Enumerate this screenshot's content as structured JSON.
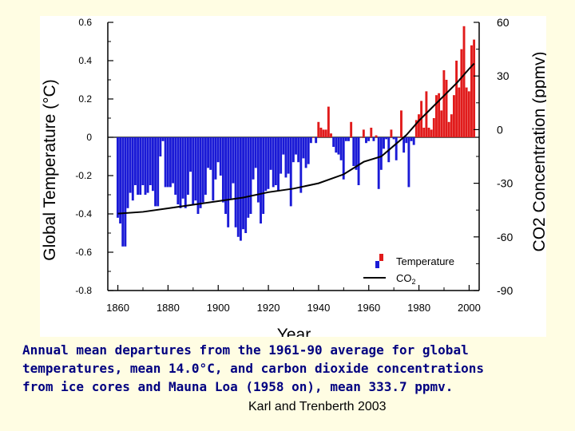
{
  "caption": {
    "lines": [
      "Annual mean departures from the 1961-90 average for global",
      "temperatures, mean 14.0°C, and carbon dioxide concentrations",
      "from ice cores and Mauna Loa (1958 on), mean 333.7 ppmv."
    ],
    "credit": "Karl and Trenberth 2003"
  },
  "chart_data": {
    "type": "bar",
    "title": "",
    "xlabel": "Year",
    "ylabel": "Global Temperature (°C)",
    "y2label": "CO2 Concentration (ppmv)",
    "xlim": [
      1856,
      2004
    ],
    "ylim": [
      -0.8,
      0.6
    ],
    "y2lim": [
      -90,
      60
    ],
    "xticks": [
      1860,
      1880,
      1900,
      1920,
      1940,
      1960,
      1980,
      2000
    ],
    "yticks": [
      -0.8,
      -0.6,
      -0.4,
      -0.2,
      0,
      0.2,
      0.4,
      0.6
    ],
    "y2ticks": [
      -90,
      -60,
      -30,
      0,
      30,
      60
    ],
    "legend": {
      "position": "bottom-right",
      "entries": [
        "Temperature",
        "CO2"
      ]
    },
    "colors": {
      "positive": "#e11b1b",
      "negative": "#1a1ad6",
      "line": "#000000"
    },
    "series": [
      {
        "name": "Temperature",
        "years": [
          1860,
          1861,
          1862,
          1863,
          1864,
          1865,
          1866,
          1867,
          1868,
          1869,
          1870,
          1871,
          1872,
          1873,
          1874,
          1875,
          1876,
          1877,
          1878,
          1879,
          1880,
          1881,
          1882,
          1883,
          1884,
          1885,
          1886,
          1887,
          1888,
          1889,
          1890,
          1891,
          1892,
          1893,
          1894,
          1895,
          1896,
          1897,
          1898,
          1899,
          1900,
          1901,
          1902,
          1903,
          1904,
          1905,
          1906,
          1907,
          1908,
          1909,
          1910,
          1911,
          1912,
          1913,
          1914,
          1915,
          1916,
          1917,
          1918,
          1919,
          1920,
          1921,
          1922,
          1923,
          1924,
          1925,
          1926,
          1927,
          1928,
          1929,
          1930,
          1931,
          1932,
          1933,
          1934,
          1935,
          1936,
          1937,
          1938,
          1939,
          1940,
          1941,
          1942,
          1943,
          1944,
          1945,
          1946,
          1947,
          1948,
          1949,
          1950,
          1951,
          1952,
          1953,
          1954,
          1955,
          1956,
          1957,
          1958,
          1959,
          1960,
          1961,
          1962,
          1963,
          1964,
          1965,
          1966,
          1967,
          1968,
          1969,
          1970,
          1971,
          1972,
          1973,
          1974,
          1975,
          1976,
          1977,
          1978,
          1979,
          1980,
          1981,
          1982,
          1983,
          1984,
          1985,
          1986,
          1987,
          1988,
          1989,
          1990,
          1991,
          1992,
          1993,
          1994,
          1995,
          1996,
          1997,
          1998,
          1999,
          2000,
          2001,
          2002
        ],
        "values": [
          -0.42,
          -0.45,
          -0.57,
          -0.57,
          -0.37,
          -0.29,
          -0.33,
          -0.25,
          -0.3,
          -0.3,
          -0.25,
          -0.3,
          -0.29,
          -0.25,
          -0.28,
          -0.36,
          -0.36,
          -0.1,
          -0.02,
          -0.26,
          -0.26,
          -0.26,
          -0.24,
          -0.3,
          -0.35,
          -0.37,
          -0.32,
          -0.37,
          -0.3,
          -0.18,
          -0.35,
          -0.33,
          -0.4,
          -0.37,
          -0.34,
          -0.3,
          -0.16,
          -0.17,
          -0.33,
          -0.22,
          -0.13,
          -0.2,
          -0.34,
          -0.4,
          -0.47,
          -0.32,
          -0.24,
          -0.47,
          -0.52,
          -0.54,
          -0.48,
          -0.5,
          -0.42,
          -0.4,
          -0.22,
          -0.16,
          -0.34,
          -0.45,
          -0.4,
          -0.28,
          -0.27,
          -0.17,
          -0.26,
          -0.25,
          -0.28,
          -0.19,
          -0.09,
          -0.21,
          -0.19,
          -0.36,
          -0.13,
          -0.09,
          -0.13,
          -0.29,
          -0.11,
          -0.16,
          -0.14,
          -0.03,
          0.0,
          -0.03,
          0.08,
          0.05,
          0.04,
          0.04,
          0.16,
          0.02,
          -0.05,
          -0.08,
          -0.09,
          -0.12,
          -0.22,
          -0.02,
          -0.02,
          0.08,
          -0.15,
          -0.17,
          -0.25,
          0.0,
          0.04,
          -0.03,
          -0.02,
          0.05,
          -0.02,
          0.01,
          -0.27,
          -0.17,
          -0.06,
          -0.01,
          -0.13,
          0.04,
          -0.01,
          -0.12,
          0.0,
          0.14,
          -0.08,
          -0.03,
          -0.26,
          -0.02,
          -0.04,
          0.09,
          0.12,
          0.19,
          0.05,
          0.24,
          0.05,
          0.04,
          0.1,
          0.22,
          0.23,
          0.14,
          0.35,
          0.3,
          0.08,
          0.12,
          0.22,
          0.4,
          0.26,
          0.46,
          0.58,
          0.26,
          0.24,
          0.48,
          0.51
        ]
      },
      {
        "name": "CO2",
        "years": [
          1860,
          1870,
          1880,
          1890,
          1900,
          1910,
          1920,
          1930,
          1940,
          1950,
          1958,
          1965,
          1970,
          1975,
          1980,
          1985,
          1990,
          1995,
          2000,
          2002
        ],
        "values": [
          -47,
          -46,
          -44,
          -42,
          -40,
          -38,
          -35,
          -33,
          -30,
          -25,
          -18,
          -15,
          -9,
          -3,
          5,
          12,
          19,
          26,
          34,
          37
        ]
      }
    ]
  }
}
